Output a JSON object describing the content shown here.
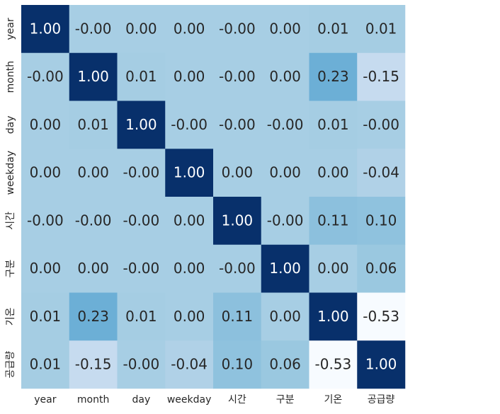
{
  "chart_data": {
    "type": "heatmap",
    "title": "",
    "xlabel": "",
    "ylabel": "",
    "x_labels": [
      "year",
      "month",
      "day",
      "weekday",
      "시간",
      "구분",
      "기온",
      "공급량"
    ],
    "y_labels": [
      "year",
      "month",
      "day",
      "weekday",
      "시간",
      "구분",
      "기온",
      "공급량"
    ],
    "values": [
      [
        1.0,
        -0.0,
        0.0,
        0.0,
        -0.0,
        0.0,
        0.01,
        0.01
      ],
      [
        -0.0,
        1.0,
        0.01,
        0.0,
        -0.0,
        0.0,
        0.23,
        -0.15
      ],
      [
        0.0,
        0.01,
        1.0,
        -0.0,
        -0.0,
        -0.0,
        0.01,
        -0.0
      ],
      [
        0.0,
        0.0,
        -0.0,
        1.0,
        0.0,
        0.0,
        0.0,
        -0.04
      ],
      [
        -0.0,
        -0.0,
        -0.0,
        0.0,
        1.0,
        -0.0,
        0.11,
        0.1
      ],
      [
        0.0,
        0.0,
        -0.0,
        0.0,
        -0.0,
        1.0,
        0.0,
        0.06
      ],
      [
        0.01,
        0.23,
        0.01,
        0.0,
        0.11,
        0.0,
        1.0,
        -0.53
      ],
      [
        0.01,
        -0.15,
        -0.0,
        -0.04,
        0.1,
        0.06,
        -0.53,
        1.0
      ]
    ],
    "value_labels": [
      [
        "1.00",
        "-0.00",
        "0.00",
        "0.00",
        "-0.00",
        "0.00",
        "0.01",
        "0.01"
      ],
      [
        "-0.00",
        "1.00",
        "0.01",
        "0.00",
        "-0.00",
        "0.00",
        "0.23",
        "-0.15"
      ],
      [
        "0.00",
        "0.01",
        "1.00",
        "-0.00",
        "-0.00",
        "-0.00",
        "0.01",
        "-0.00"
      ],
      [
        "0.00",
        "0.00",
        "-0.00",
        "1.00",
        "0.00",
        "0.00",
        "0.00",
        "-0.04"
      ],
      [
        "-0.00",
        "-0.00",
        "-0.00",
        "0.00",
        "1.00",
        "-0.00",
        "0.11",
        "0.10"
      ],
      [
        "0.00",
        "0.00",
        "-0.00",
        "0.00",
        "-0.00",
        "1.00",
        "0.00",
        "0.06"
      ],
      [
        "0.01",
        "0.23",
        "0.01",
        "0.00",
        "0.11",
        "0.00",
        "1.00",
        "-0.53"
      ],
      [
        "0.01",
        "-0.15",
        "-0.00",
        "-0.04",
        "0.10",
        "0.06",
        "-0.53",
        "1.00"
      ]
    ],
    "color_scale": {
      "name": "Blues",
      "vmin": -0.53,
      "vmax": 1.0,
      "stops": [
        "#f7fbff",
        "#deebf7",
        "#c6dbef",
        "#9ecae1",
        "#6baed6",
        "#4292c6",
        "#2171b5",
        "#08519c",
        "#08306b"
      ]
    },
    "annotation_colors": {
      "dark": "#262626",
      "light": "#ffffff"
    },
    "colorbar": false,
    "grid": false,
    "legend": "none"
  }
}
